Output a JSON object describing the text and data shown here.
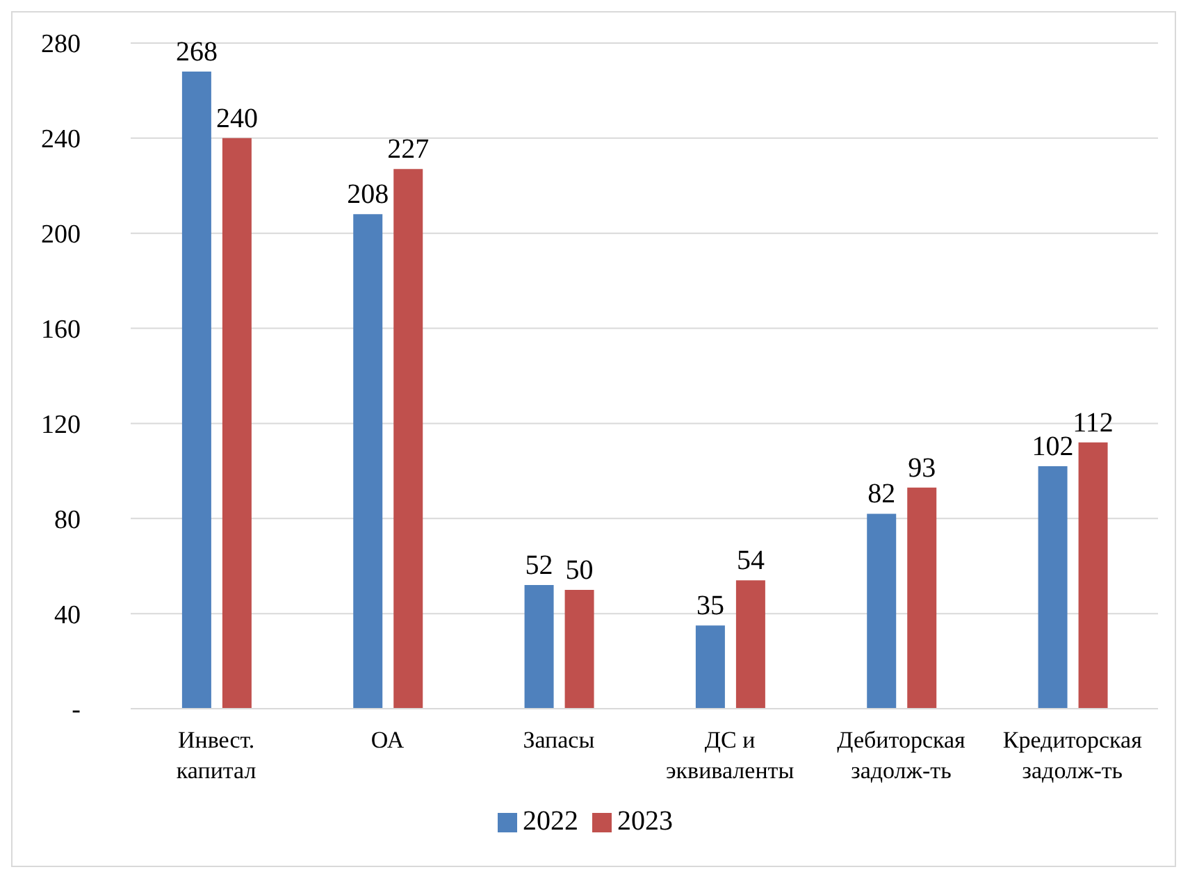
{
  "chart_data": {
    "type": "bar",
    "categories": [
      "Инвест. капитал",
      "ОА",
      "Запасы",
      "ДС и эквиваленты",
      "Дебиторская задолж-ть",
      "Кредиторская задолж-ть"
    ],
    "series": [
      {
        "name": "2022",
        "color": "#4f81bd",
        "values": [
          268,
          208,
          52,
          35,
          82,
          102
        ]
      },
      {
        "name": "2023",
        "color": "#c0504d",
        "values": [
          240,
          227,
          50,
          54,
          93,
          112
        ]
      }
    ],
    "ylim": [
      0,
      280
    ],
    "yticks": [
      {
        "value": 0,
        "label": "-"
      },
      40,
      80,
      120,
      160,
      200,
      240,
      280
    ],
    "grid": "y",
    "legend": "bottom",
    "data_labels": true
  }
}
